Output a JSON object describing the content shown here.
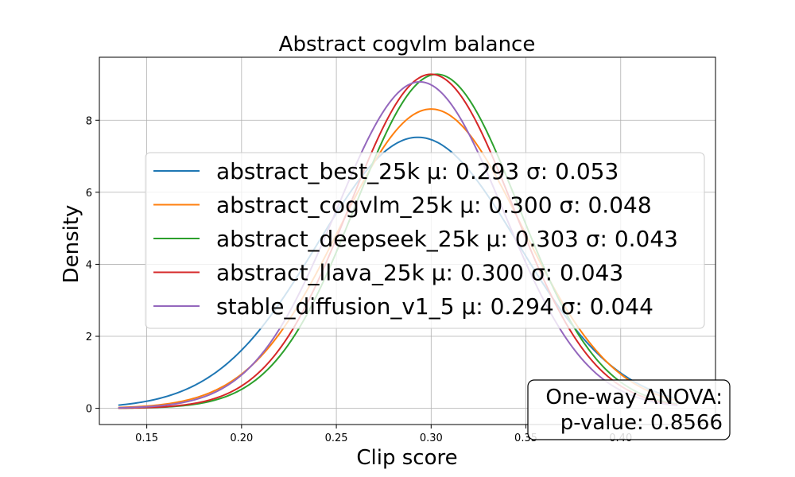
{
  "chart_data": {
    "type": "line",
    "title": "Abstract cogvlm balance",
    "xlabel": "Clip score",
    "ylabel": "Density",
    "xlim": [
      0.125,
      0.45
    ],
    "ylim": [
      -0.45,
      9.75
    ],
    "xticks": [
      0.15,
      0.2,
      0.25,
      0.3,
      0.35,
      0.4
    ],
    "xtick_labels": [
      "0.15",
      "0.20",
      "0.25",
      "0.30",
      "0.35",
      "0.40"
    ],
    "yticks": [
      0,
      2,
      4,
      6,
      8
    ],
    "ytick_labels": [
      "0",
      "2",
      "4",
      "6",
      "8"
    ],
    "grid": true,
    "legend_position": "center",
    "x_range": [
      0.135,
      0.43
    ],
    "series": [
      {
        "name": "abstract_best_25k",
        "stats": "μ: 0.293 σ: 0.053",
        "mean": 0.293,
        "std": 0.053,
        "color": "#1f77b4"
      },
      {
        "name": "abstract_cogvlm_25k",
        "stats": "μ: 0.300 σ: 0.048",
        "mean": 0.3,
        "std": 0.048,
        "color": "#ff7f0e"
      },
      {
        "name": "abstract_deepseek_25k",
        "stats": "μ: 0.303 σ: 0.043",
        "mean": 0.303,
        "std": 0.043,
        "color": "#2ca02c"
      },
      {
        "name": "abstract_llava_25k",
        "stats": "μ: 0.300 σ: 0.043",
        "mean": 0.3,
        "std": 0.043,
        "color": "#d62728"
      },
      {
        "name": "stable_diffusion_v1_5",
        "stats": "μ: 0.294 σ: 0.044",
        "mean": 0.294,
        "std": 0.044,
        "color": "#9467bd"
      }
    ],
    "annotation": {
      "line1": "One-way ANOVA:",
      "line2": "p-value: 0.8566",
      "position": "bottom-right"
    }
  }
}
